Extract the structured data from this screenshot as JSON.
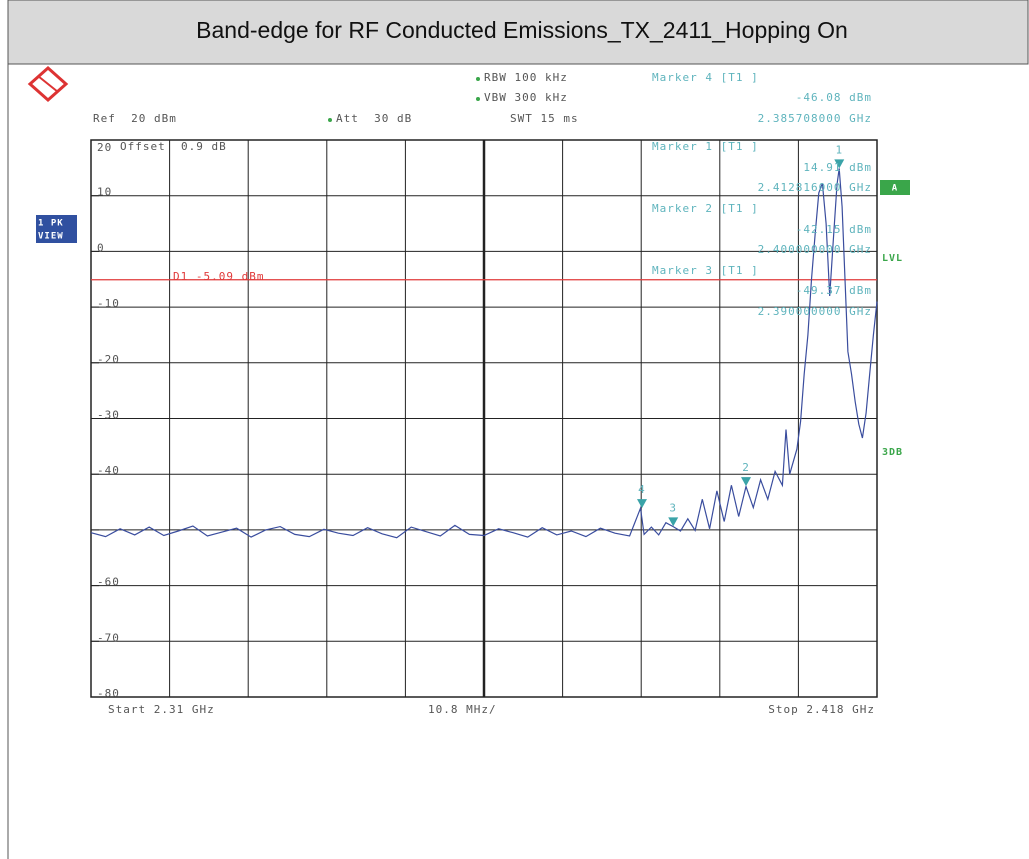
{
  "chart_data": {
    "type": "line",
    "title": "Band-edge for RF Conducted Emissions_TX_2411_Hopping On",
    "header": {
      "rbw": "RBW 100 kHz",
      "vbw": "VBW 300 kHz",
      "swt": "SWT 15 ms",
      "ref": "Ref  20 dBm",
      "att": "Att  30 dB",
      "offset": "Offset  0.9 dB"
    },
    "side_labels": {
      "trace": [
        "1 PK",
        "VIEW"
      ],
      "a": "A",
      "lvl": "LVL",
      "db3": "3DB"
    },
    "footer": {
      "start": "Start 2.31 GHz",
      "span": "10.8 MHz/",
      "stop": "Stop 2.418 GHz"
    },
    "xlim": [
      2.31,
      2.418
    ],
    "xticks": [
      {
        "value": 2.31,
        "label": null
      },
      {
        "value": 2.3208,
        "label": null
      },
      {
        "value": 2.3316,
        "label": null
      },
      {
        "value": 2.3424,
        "label": null
      },
      {
        "value": 2.3532,
        "label": null
      },
      {
        "value": 2.364,
        "label": null
      },
      {
        "value": 2.3748,
        "label": null
      },
      {
        "value": 2.3856,
        "label": null
      },
      {
        "value": 2.3964,
        "label": null
      },
      {
        "value": 2.4072,
        "label": null
      },
      {
        "value": 2.418,
        "label": null
      }
    ],
    "ylim": [
      -80,
      20
    ],
    "yticks": [
      20,
      10,
      0,
      -10,
      -20,
      -30,
      -40,
      {
        "value": -50,
        "label": null
      },
      -60,
      -70,
      -80
    ],
    "grid": true,
    "x": [
      2.31,
      2.312,
      2.314,
      2.316,
      2.318,
      2.32,
      2.322,
      2.324,
      2.326,
      2.328,
      2.33,
      2.332,
      2.334,
      2.336,
      2.338,
      2.34,
      2.342,
      2.344,
      2.346,
      2.348,
      2.35,
      2.352,
      2.354,
      2.356,
      2.358,
      2.36,
      2.362,
      2.364,
      2.366,
      2.368,
      2.37,
      2.372,
      2.374,
      2.376,
      2.378,
      2.38,
      2.382,
      2.384,
      2.3855,
      2.386,
      2.387,
      2.388,
      2.389,
      2.39,
      2.391,
      2.392,
      2.393,
      2.394,
      2.395,
      2.396,
      2.397,
      2.398,
      2.399,
      2.4,
      2.401,
      2.402,
      2.403,
      2.404,
      2.405,
      2.4055,
      2.406,
      2.407,
      2.4075,
      2.408,
      2.4085,
      2.409,
      2.4095,
      2.41,
      2.4105,
      2.411,
      2.4115,
      2.412,
      2.4125,
      2.4128,
      2.4132,
      2.4136,
      2.414,
      2.4145,
      2.415,
      2.4155,
      2.416,
      2.4165,
      2.417,
      2.4175,
      2.418
    ],
    "series": [
      {
        "color": "#3a4d9e",
        "values": [
          -50.5,
          -51.2,
          -49.8,
          -50.9,
          -49.5,
          -51.0,
          -50.2,
          -49.3,
          -51.1,
          -50.4,
          -49.7,
          -51.3,
          -50.0,
          -49.4,
          -50.8,
          -51.2,
          -49.9,
          -50.6,
          -51.0,
          -49.6,
          -50.7,
          -51.4,
          -49.5,
          -50.3,
          -51.1,
          -49.2,
          -50.8,
          -51.0,
          -49.8,
          -50.5,
          -51.3,
          -49.6,
          -50.9,
          -50.2,
          -51.2,
          -49.7,
          -50.6,
          -51.1,
          -46.1,
          -50.8,
          -49.5,
          -50.9,
          -48.7,
          -49.4,
          -50.2,
          -48.0,
          -50.1,
          -44.5,
          -49.8,
          -43.0,
          -48.5,
          -42.0,
          -47.6,
          -42.2,
          -46.0,
          -41.0,
          -44.5,
          -39.5,
          -42.0,
          -32.0,
          -40.0,
          -35.5,
          -30.5,
          -22.0,
          -15.0,
          -5.0,
          3.0,
          10.5,
          12.2,
          5.0,
          -8.0,
          2.0,
          12.0,
          14.91,
          8.0,
          -5.0,
          -18.0,
          -22.0,
          -27.0,
          -31.0,
          -33.5,
          -29.0,
          -22.0,
          -15.0,
          -9.0
        ]
      }
    ],
    "display_line": {
      "label": "D1 -5.09 dBm",
      "value": -5.09,
      "color": "#e03a3a"
    },
    "markers": [
      {
        "name": "Marker 4 [T1 ]",
        "label": "4",
        "x": 2.385708,
        "x_label": "2.385708000 GHz",
        "y": -46.08,
        "y_label": "-46.08 dBm"
      },
      {
        "name": "Marker 1 [T1 ]",
        "label": "1",
        "x": 2.412816,
        "x_label": "2.412816000 GHz",
        "y": 14.91,
        "y_label": "14.91 dBm"
      },
      {
        "name": "Marker 2 [T1 ]",
        "label": "2",
        "x": 2.4,
        "x_label": "2.400000000 GHz",
        "y": -42.15,
        "y_label": "-42.15 dBm"
      },
      {
        "name": "Marker 3 [T1 ]",
        "label": "3",
        "x": 2.39,
        "x_label": "2.390000000 GHz",
        "y": -49.37,
        "y_label": "-49.37 dBm"
      }
    ]
  }
}
